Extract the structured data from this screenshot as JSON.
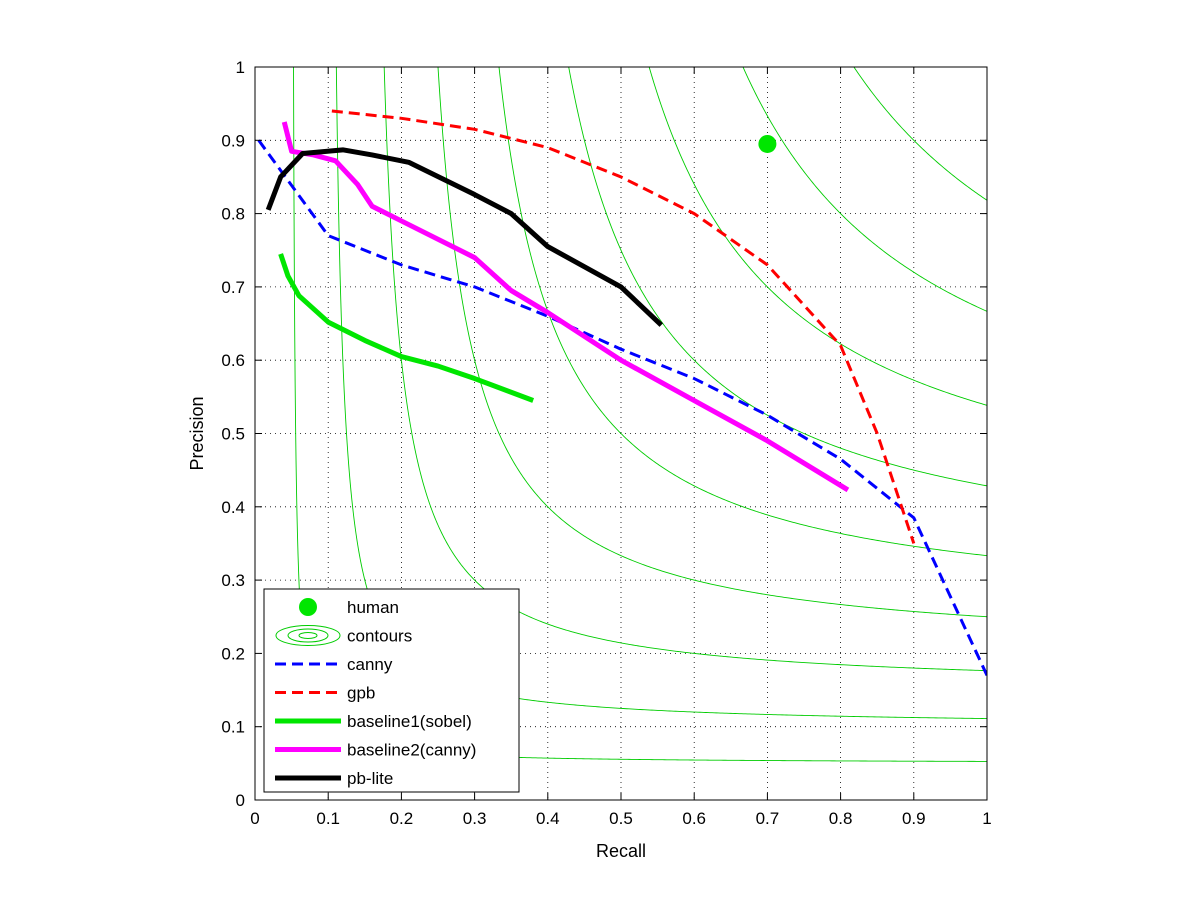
{
  "chart_data": {
    "type": "line",
    "title": "",
    "xlabel": "Recall",
    "ylabel": "Precision",
    "xlim": [
      0,
      1
    ],
    "ylim": [
      0,
      1
    ],
    "grid": true,
    "legend_position": "bottom-left",
    "x_ticks": [
      "0",
      "0.1",
      "0.2",
      "0.3",
      "0.4",
      "0.5",
      "0.6",
      "0.7",
      "0.8",
      "0.9",
      "1"
    ],
    "y_ticks": [
      "0",
      "0.1",
      "0.2",
      "0.3",
      "0.4",
      "0.5",
      "0.6",
      "0.7",
      "0.8",
      "0.9",
      "1"
    ],
    "contour_f_levels": [
      0.1,
      0.2,
      0.3,
      0.4,
      0.5,
      0.6,
      0.7,
      0.8,
      0.9
    ],
    "series": [
      {
        "name": "human",
        "style": "marker",
        "color": "#00e600",
        "points": [
          [
            0.7,
            0.895
          ]
        ]
      },
      {
        "name": "contours",
        "style": "iso-f-contours",
        "color": "#00cc00",
        "points": []
      },
      {
        "name": "canny",
        "style": "dashed",
        "color": "#0000ff",
        "points": [
          [
            0.005,
            0.9
          ],
          [
            0.1,
            0.77
          ],
          [
            0.2,
            0.73
          ],
          [
            0.3,
            0.7
          ],
          [
            0.4,
            0.66
          ],
          [
            0.5,
            0.615
          ],
          [
            0.6,
            0.575
          ],
          [
            0.7,
            0.525
          ],
          [
            0.8,
            0.465
          ],
          [
            0.9,
            0.385
          ],
          [
            1.0,
            0.17
          ]
        ]
      },
      {
        "name": "gpb",
        "style": "dashed",
        "color": "#ff0000",
        "points": [
          [
            0.105,
            0.94
          ],
          [
            0.2,
            0.93
          ],
          [
            0.3,
            0.915
          ],
          [
            0.4,
            0.89
          ],
          [
            0.5,
            0.85
          ],
          [
            0.6,
            0.8
          ],
          [
            0.7,
            0.73
          ],
          [
            0.8,
            0.62
          ],
          [
            0.85,
            0.5
          ],
          [
            0.9,
            0.35
          ]
        ]
      },
      {
        "name": "baseline1(sobel)",
        "style": "solid",
        "color": "#00e600",
        "points": [
          [
            0.035,
            0.745
          ],
          [
            0.045,
            0.715
          ],
          [
            0.06,
            0.688
          ],
          [
            0.1,
            0.652
          ],
          [
            0.15,
            0.627
          ],
          [
            0.2,
            0.605
          ],
          [
            0.25,
            0.592
          ],
          [
            0.3,
            0.575
          ],
          [
            0.38,
            0.545
          ]
        ]
      },
      {
        "name": "baseline2(canny)",
        "style": "solid",
        "color": "#ff00ff",
        "points": [
          [
            0.04,
            0.925
          ],
          [
            0.05,
            0.885
          ],
          [
            0.08,
            0.88
          ],
          [
            0.11,
            0.872
          ],
          [
            0.14,
            0.84
          ],
          [
            0.16,
            0.81
          ],
          [
            0.2,
            0.79
          ],
          [
            0.3,
            0.74
          ],
          [
            0.35,
            0.695
          ],
          [
            0.4,
            0.665
          ],
          [
            0.5,
            0.6
          ],
          [
            0.6,
            0.545
          ],
          [
            0.7,
            0.49
          ],
          [
            0.81,
            0.423
          ]
        ]
      },
      {
        "name": "pb-lite",
        "style": "solid",
        "color": "#000000",
        "points": [
          [
            0.018,
            0.805
          ],
          [
            0.035,
            0.85
          ],
          [
            0.065,
            0.882
          ],
          [
            0.12,
            0.887
          ],
          [
            0.16,
            0.88
          ],
          [
            0.21,
            0.87
          ],
          [
            0.3,
            0.826
          ],
          [
            0.35,
            0.8
          ],
          [
            0.4,
            0.755
          ],
          [
            0.5,
            0.7
          ],
          [
            0.555,
            0.648
          ]
        ]
      }
    ]
  }
}
